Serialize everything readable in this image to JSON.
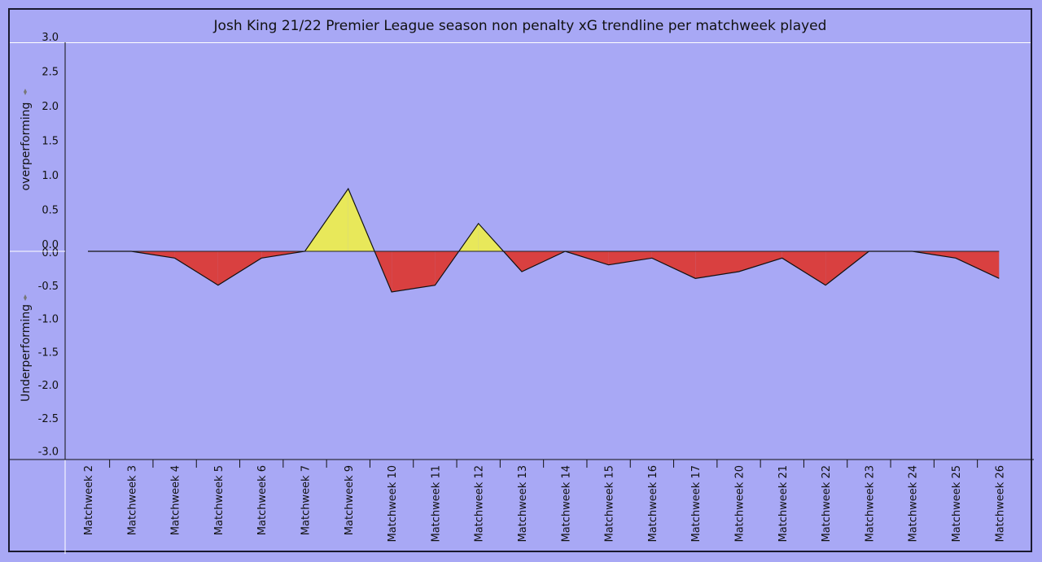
{
  "chart_data": {
    "type": "area",
    "title": "Josh King 21/22 Premier League season non penalty xG trendline per matchweek played",
    "ylabel_top": "overperforming",
    "ylabel_bottom": "Underperforming",
    "categories": [
      "Matchweek 2",
      "Matchweek 3",
      "Matchweek 4",
      "Matchweek 5",
      "Matchweek 6",
      "Matchweek 7",
      "Matchweek 9",
      "Matchweek 10",
      "Matchweek 11",
      "Matchweek 12",
      "Matchweek 13",
      "Matchweek 14",
      "Matchweek 15",
      "Matchweek 16",
      "Matchweek 17",
      "Matchweek 20",
      "Matchweek 21",
      "Matchweek 22",
      "Matchweek 23",
      "Matchweek 24",
      "Matchweek 25",
      "Matchweek 26"
    ],
    "values": [
      0.0,
      0.0,
      -0.1,
      -0.5,
      -0.1,
      0.0,
      0.9,
      -0.6,
      -0.5,
      0.4,
      -0.3,
      0.0,
      -0.2,
      -0.1,
      -0.4,
      -0.3,
      -0.1,
      -0.5,
      0.0,
      0.0,
      -0.1,
      -0.4
    ],
    "y_ticks_top": [
      "3.0",
      "2.5",
      "2.0",
      "1.5",
      "1.0",
      "0.5",
      "0.0"
    ],
    "y_ticks_bottom": [
      "0.0",
      "-0.5",
      "-1.0",
      "-1.5",
      "-2.0",
      "-2.5",
      "-3.0"
    ],
    "ylim": [
      -3.0,
      3.0
    ],
    "positive_color": "#e8e85a",
    "negative_color": "#d94040",
    "background_color": "#a8a8f5"
  }
}
